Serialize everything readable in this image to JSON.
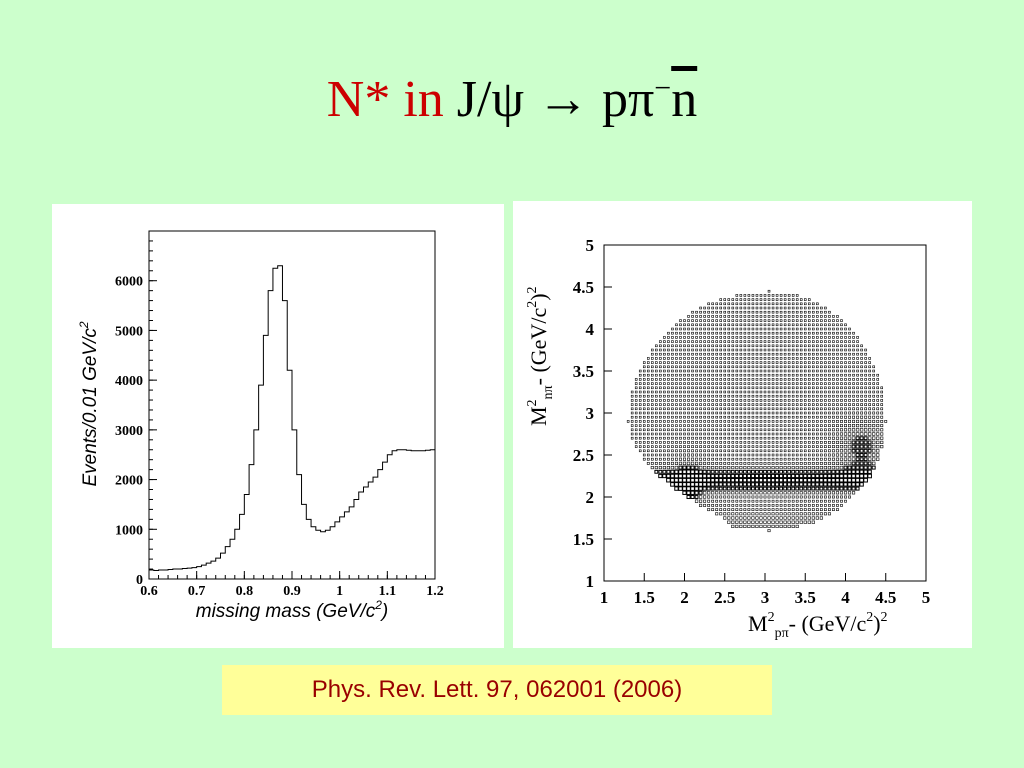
{
  "title": {
    "part1": "N* in",
    "part2": "J/ψ → pπ",
    "sup": "−",
    "nbar": "n"
  },
  "colors": {
    "background": "#ccffcc",
    "title_red": "#cc0000",
    "citation_bg": "#ffff99",
    "citation_text": "#990000"
  },
  "citation": "Phys. Rev. Lett. 97, 062001 (2006)",
  "chart_data": [
    {
      "type": "histogram",
      "xlabel_main": "missing mass (GeV/c",
      "xlabel_sup": "2",
      "xlabel_end": ")",
      "ylabel_main": "Events/0.01 GeV/c",
      "ylabel_sup": "2",
      "xlim": [
        0.6,
        1.2
      ],
      "ylim": [
        0,
        7000
      ],
      "x_ticks": [
        "0.6",
        "0.7",
        "0.8",
        "0.9",
        "1",
        "1.1",
        "1.2"
      ],
      "x_tick_values": [
        0.6,
        0.7,
        0.8,
        0.9,
        1.0,
        1.1,
        1.2
      ],
      "y_ticks": [
        "0",
        "1000",
        "2000",
        "3000",
        "4000",
        "5000",
        "6000"
      ],
      "y_tick_values": [
        0,
        1000,
        2000,
        3000,
        4000,
        5000,
        6000
      ],
      "bin_width": 0.01,
      "bin_start": 0.6,
      "values": [
        180,
        170,
        180,
        180,
        190,
        200,
        200,
        210,
        220,
        230,
        250,
        280,
        320,
        360,
        420,
        520,
        650,
        800,
        1000,
        1300,
        1700,
        2300,
        3000,
        3900,
        4900,
        5800,
        6250,
        6300,
        5600,
        4200,
        3000,
        2100,
        1500,
        1200,
        1050,
        980,
        950,
        980,
        1050,
        1150,
        1250,
        1350,
        1450,
        1600,
        1750,
        1850,
        1950,
        2050,
        2200,
        2350,
        2500,
        2580,
        2600,
        2600,
        2590,
        2580,
        2580,
        2580,
        2590,
        2600
      ]
    },
    {
      "type": "scatter",
      "xlabel_main": "M",
      "xlabel_sup": "2",
      "xlabel_sub": "pπ",
      "xlabel_end": "- (GeV/c",
      "xlabel_sup2": "2",
      "xlabel_end2": ")",
      "xlabel_sup3": "2",
      "ylabel_main": "M",
      "ylabel_sup": "2",
      "ylabel_sub": "nπ",
      "ylabel_end": "- (GeV/c",
      "ylabel_sup2": "2",
      "ylabel_end2": ")",
      "ylabel_sup3": "2",
      "xlim": [
        1,
        5
      ],
      "ylim": [
        1,
        5
      ],
      "x_ticks": [
        "1",
        "1.5",
        "2",
        "2.5",
        "3",
        "3.5",
        "4",
        "4.5",
        "5"
      ],
      "x_tick_values": [
        1,
        1.5,
        2,
        2.5,
        3,
        3.5,
        4,
        4.5,
        5
      ],
      "y_ticks": [
        "1",
        "1.5",
        "2",
        "2.5",
        "3",
        "3.5",
        "4",
        "4.5",
        "5"
      ],
      "y_tick_values": [
        1,
        1.5,
        2,
        2.5,
        3,
        3.5,
        4,
        4.5,
        5
      ],
      "marker": "box",
      "region_note": "Dalitz plot with enhanced bands near M²≈2.0–2.3 and upper-right region",
      "bin_size": 0.05
    }
  ]
}
